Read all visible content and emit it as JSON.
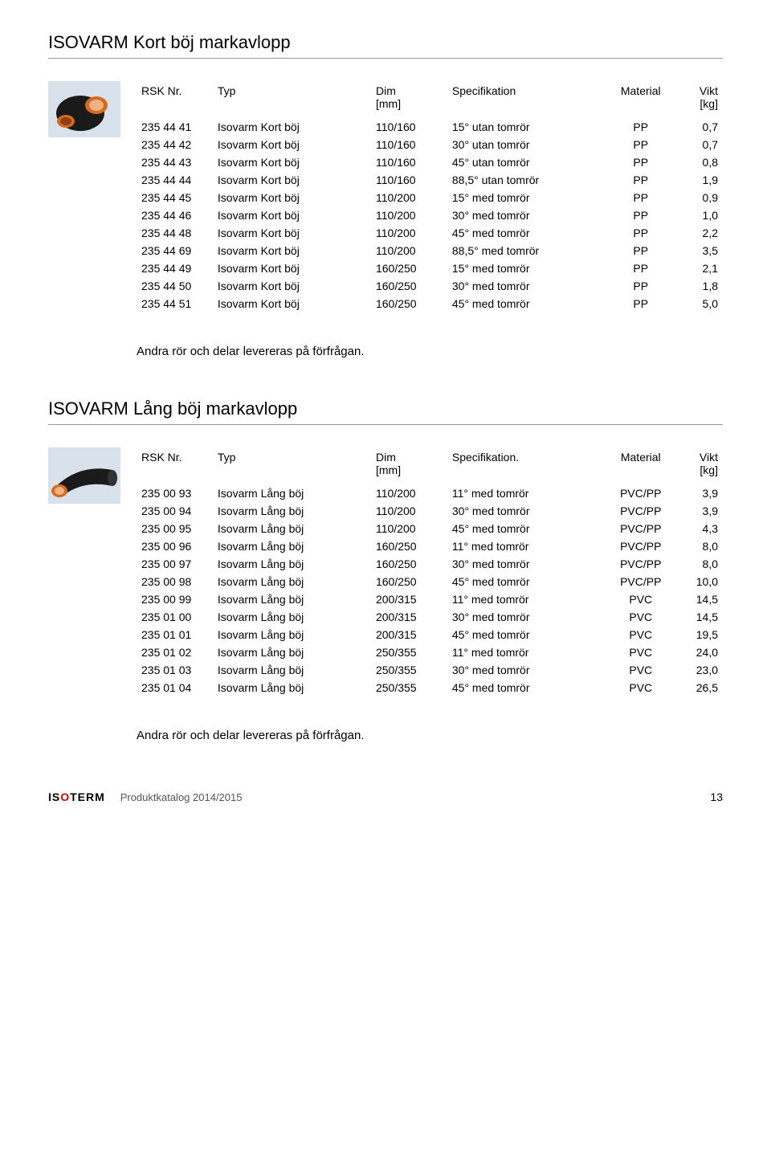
{
  "section1": {
    "title": "ISOVARM Kort böj markavlopp",
    "headers": {
      "rsk": "RSK Nr.",
      "typ": "Typ",
      "dim": "Dim",
      "dim_unit": "[mm]",
      "spec": "Specifikation",
      "mat": "Material",
      "vikt": "Vikt",
      "vikt_unit": "[kg]"
    },
    "groups": [
      [
        {
          "rsk": "235 44 41",
          "typ": "Isovarm Kort böj",
          "dim": "110/160",
          "spec": "15° utan tomrör",
          "mat": "PP",
          "vikt": "0,7"
        },
        {
          "rsk": "235 44 42",
          "typ": "Isovarm Kort böj",
          "dim": "110/160",
          "spec": "30° utan tomrör",
          "mat": "PP",
          "vikt": "0,7"
        },
        {
          "rsk": "235 44 43",
          "typ": "Isovarm Kort böj",
          "dim": "110/160",
          "spec": "45° utan tomrör",
          "mat": "PP",
          "vikt": "0,8"
        },
        {
          "rsk": "235 44 44",
          "typ": "Isovarm Kort böj",
          "dim": "110/160",
          "spec": "88,5° utan tomrör",
          "mat": "PP",
          "vikt": "1,9"
        }
      ],
      [
        {
          "rsk": "235 44 45",
          "typ": "Isovarm Kort böj",
          "dim": "110/200",
          "spec": "15° med tomrör",
          "mat": "PP",
          "vikt": "0,9"
        },
        {
          "rsk": "235 44 46",
          "typ": "Isovarm Kort böj",
          "dim": "110/200",
          "spec": "30° med tomrör",
          "mat": "PP",
          "vikt": "1,0"
        },
        {
          "rsk": "235 44 48",
          "typ": "Isovarm Kort böj",
          "dim": "110/200",
          "spec": "45° med tomrör",
          "mat": "PP",
          "vikt": "2,2"
        },
        {
          "rsk": "235 44 69",
          "typ": "Isovarm Kort böj",
          "dim": "110/200",
          "spec": "88,5° med tomrör",
          "mat": "PP",
          "vikt": "3,5"
        }
      ],
      [
        {
          "rsk": "235 44 49",
          "typ": "Isovarm Kort böj",
          "dim": "160/250",
          "spec": "15° med tomrör",
          "mat": "PP",
          "vikt": "2,1"
        },
        {
          "rsk": "235 44 50",
          "typ": "Isovarm Kort böj",
          "dim": "160/250",
          "spec": "30° med tomrör",
          "mat": "PP",
          "vikt": "1,8"
        },
        {
          "rsk": "235 44 51",
          "typ": "Isovarm Kort böj",
          "dim": "160/250",
          "spec": "45° med tomrör",
          "mat": "PP",
          "vikt": "5,0"
        }
      ]
    ],
    "note": "Andra rör och delar levereras på förfrågan."
  },
  "section2": {
    "title": "ISOVARM Lång böj markavlopp",
    "headers": {
      "rsk": "RSK Nr.",
      "typ": "Typ",
      "dim": "Dim",
      "dim_unit": "[mm]",
      "spec": "Specifikation.",
      "mat": "Material",
      "vikt": "Vikt",
      "vikt_unit": "[kg]"
    },
    "groups": [
      [
        {
          "rsk": "235 00 93",
          "typ": "Isovarm Lång böj",
          "dim": "110/200",
          "spec": "11° med tomrör",
          "mat": "PVC/PP",
          "vikt": "3,9"
        },
        {
          "rsk": "235 00 94",
          "typ": "Isovarm Lång böj",
          "dim": "110/200",
          "spec": "30° med tomrör",
          "mat": "PVC/PP",
          "vikt": "3,9"
        },
        {
          "rsk": "235 00 95",
          "typ": "Isovarm Lång böj",
          "dim": "110/200",
          "spec": "45° med tomrör",
          "mat": "PVC/PP",
          "vikt": "4,3"
        }
      ],
      [
        {
          "rsk": "235 00 96",
          "typ": "Isovarm Lång böj",
          "dim": "160/250",
          "spec": "11° med tomrör",
          "mat": "PVC/PP",
          "vikt": "8,0"
        },
        {
          "rsk": "235 00 97",
          "typ": "Isovarm Lång böj",
          "dim": "160/250",
          "spec": "30° med tomrör",
          "mat": "PVC/PP",
          "vikt": "8,0"
        },
        {
          "rsk": "235 00 98",
          "typ": "Isovarm Lång böj",
          "dim": "160/250",
          "spec": "45° med tomrör",
          "mat": "PVC/PP",
          "vikt": "10,0"
        }
      ],
      [
        {
          "rsk": "235 00 99",
          "typ": "Isovarm Lång böj",
          "dim": "200/315",
          "spec": "11° med tomrör",
          "mat": "PVC",
          "vikt": "14,5"
        },
        {
          "rsk": "235 01 00",
          "typ": "Isovarm Lång böj",
          "dim": "200/315",
          "spec": "30° med tomrör",
          "mat": "PVC",
          "vikt": "14,5"
        },
        {
          "rsk": "235 01 01",
          "typ": "Isovarm Lång böj",
          "dim": "200/315",
          "spec": "45° med tomrör",
          "mat": "PVC",
          "vikt": "19,5"
        }
      ],
      [
        {
          "rsk": "235 01 02",
          "typ": "Isovarm Lång böj",
          "dim": "250/355",
          "spec": "11° med tomrör",
          "mat": "PVC",
          "vikt": "24,0"
        },
        {
          "rsk": "235 01 03",
          "typ": "Isovarm Lång böj",
          "dim": "250/355",
          "spec": "30° med tomrör",
          "mat": "PVC",
          "vikt": "23,0"
        },
        {
          "rsk": "235 01 04",
          "typ": "Isovarm Lång böj",
          "dim": "250/355",
          "spec": "45° med tomrör",
          "mat": "PVC",
          "vikt": "26,5"
        }
      ]
    ],
    "note": "Andra rör och delar levereras på förfrågan."
  },
  "footer": {
    "logo_pre": "IS",
    "logo_red": "O",
    "logo_post": "TERM",
    "katalog": "Produktkatalog 2014/2015",
    "page": "13"
  },
  "image": {
    "colors": {
      "body_black": "#1a1a1a",
      "bore_orange": "#d66a1f",
      "inner_peach": "#f0b183",
      "bg": "#d9e2ea"
    }
  }
}
